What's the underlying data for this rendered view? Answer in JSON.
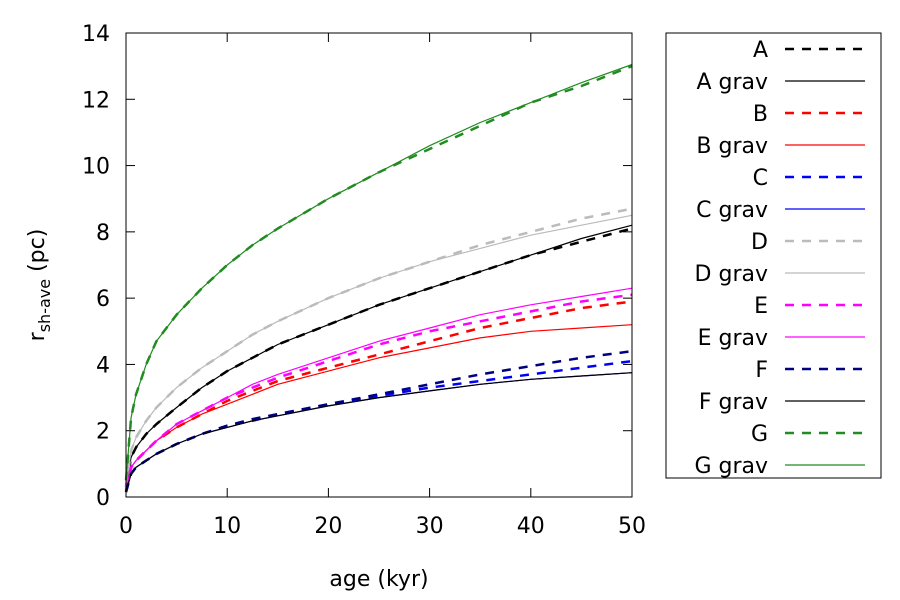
{
  "chart_data": {
    "type": "line",
    "title": "",
    "xlabel": "age (kyr)",
    "ylabel_main": "r",
    "ylabel_sub": "sh-ave",
    "ylabel_unit": " (pc)",
    "xlim": [
      0,
      50
    ],
    "ylim": [
      0,
      14
    ],
    "xticks": [
      0,
      10,
      20,
      30,
      40,
      50
    ],
    "yticks": [
      0,
      2,
      4,
      6,
      8,
      10,
      12,
      14
    ],
    "grid": false,
    "legend_position": "right, outside",
    "x": [
      0,
      0.5,
      1,
      2,
      3,
      5,
      7.5,
      10,
      12.5,
      15,
      20,
      25,
      30,
      35,
      40,
      45,
      50
    ],
    "series": [
      {
        "name": "A",
        "style": "dashed",
        "color": "#000000",
        "values": [
          0.3,
          1.2,
          1.5,
          1.9,
          2.2,
          2.7,
          3.3,
          3.8,
          4.2,
          4.6,
          5.2,
          5.8,
          6.3,
          6.8,
          7.3,
          7.7,
          8.1
        ]
      },
      {
        "name": "A grav",
        "style": "solid",
        "color": "#000000",
        "values": [
          0.3,
          1.2,
          1.5,
          1.9,
          2.2,
          2.7,
          3.3,
          3.8,
          4.2,
          4.6,
          5.2,
          5.8,
          6.3,
          6.8,
          7.3,
          7.8,
          8.2
        ]
      },
      {
        "name": "B",
        "style": "dashed",
        "color": "#ff0000",
        "values": [
          0.2,
          0.9,
          1.1,
          1.4,
          1.7,
          2.1,
          2.5,
          2.9,
          3.2,
          3.5,
          3.9,
          4.3,
          4.7,
          5.1,
          5.4,
          5.7,
          5.9
        ]
      },
      {
        "name": "B grav",
        "style": "solid",
        "color": "#ff0000",
        "values": [
          0.2,
          0.9,
          1.1,
          1.4,
          1.7,
          2.1,
          2.5,
          2.8,
          3.1,
          3.4,
          3.8,
          4.2,
          4.5,
          4.8,
          5.0,
          5.1,
          5.2
        ]
      },
      {
        "name": "C",
        "style": "dashed",
        "color": "#0000ff",
        "values": [
          0.15,
          0.7,
          0.9,
          1.1,
          1.3,
          1.6,
          1.9,
          2.15,
          2.3,
          2.5,
          2.8,
          3.05,
          3.3,
          3.5,
          3.7,
          3.9,
          4.1
        ]
      },
      {
        "name": "C grav",
        "style": "solid",
        "color": "#0000ff",
        "values": [
          0.15,
          0.7,
          0.9,
          1.1,
          1.3,
          1.6,
          1.9,
          2.1,
          2.3,
          2.45,
          2.75,
          3.0,
          3.2,
          3.4,
          3.55,
          3.65,
          3.75
        ]
      },
      {
        "name": "D",
        "style": "dashed",
        "color": "#bbbbbb",
        "values": [
          0.3,
          1.4,
          1.8,
          2.3,
          2.7,
          3.3,
          3.9,
          4.4,
          4.9,
          5.3,
          6.0,
          6.6,
          7.1,
          7.6,
          8.0,
          8.4,
          8.7
        ]
      },
      {
        "name": "D grav",
        "style": "solid",
        "color": "#bbbbbb",
        "values": [
          0.3,
          1.4,
          1.8,
          2.3,
          2.7,
          3.3,
          3.9,
          4.4,
          4.9,
          5.3,
          6.0,
          6.6,
          7.1,
          7.5,
          7.9,
          8.2,
          8.5
        ]
      },
      {
        "name": "E",
        "style": "dashed",
        "color": "#ff00ff",
        "values": [
          0.2,
          0.9,
          1.1,
          1.4,
          1.7,
          2.2,
          2.6,
          3.0,
          3.3,
          3.6,
          4.1,
          4.6,
          5.0,
          5.3,
          5.6,
          5.9,
          6.1
        ]
      },
      {
        "name": "E grav",
        "style": "solid",
        "color": "#ff00ff",
        "values": [
          0.2,
          0.9,
          1.1,
          1.4,
          1.7,
          2.2,
          2.6,
          3.0,
          3.4,
          3.7,
          4.2,
          4.7,
          5.1,
          5.5,
          5.8,
          6.05,
          6.3
        ]
      },
      {
        "name": "F",
        "style": "dashed",
        "color": "#000080",
        "values": [
          0.15,
          0.7,
          0.9,
          1.1,
          1.3,
          1.6,
          1.9,
          2.15,
          2.35,
          2.5,
          2.8,
          3.1,
          3.4,
          3.7,
          3.95,
          4.2,
          4.4
        ]
      },
      {
        "name": "F grav",
        "style": "solid",
        "color": "#000000",
        "values": [
          0.15,
          0.7,
          0.9,
          1.1,
          1.3,
          1.6,
          1.9,
          2.1,
          2.3,
          2.45,
          2.75,
          3.0,
          3.2,
          3.4,
          3.55,
          3.65,
          3.75
        ]
      },
      {
        "name": "G",
        "style": "dashed",
        "color": "#228b22",
        "values": [
          0.5,
          2.4,
          3.1,
          4.0,
          4.7,
          5.5,
          6.3,
          7.0,
          7.6,
          8.1,
          9.0,
          9.8,
          10.5,
          11.2,
          11.9,
          12.4,
          13.0
        ]
      },
      {
        "name": "G grav",
        "style": "solid",
        "color": "#228b22",
        "values": [
          0.5,
          2.4,
          3.1,
          4.0,
          4.7,
          5.5,
          6.3,
          7.0,
          7.6,
          8.1,
          9.0,
          9.8,
          10.6,
          11.3,
          11.9,
          12.5,
          13.05
        ]
      }
    ]
  }
}
